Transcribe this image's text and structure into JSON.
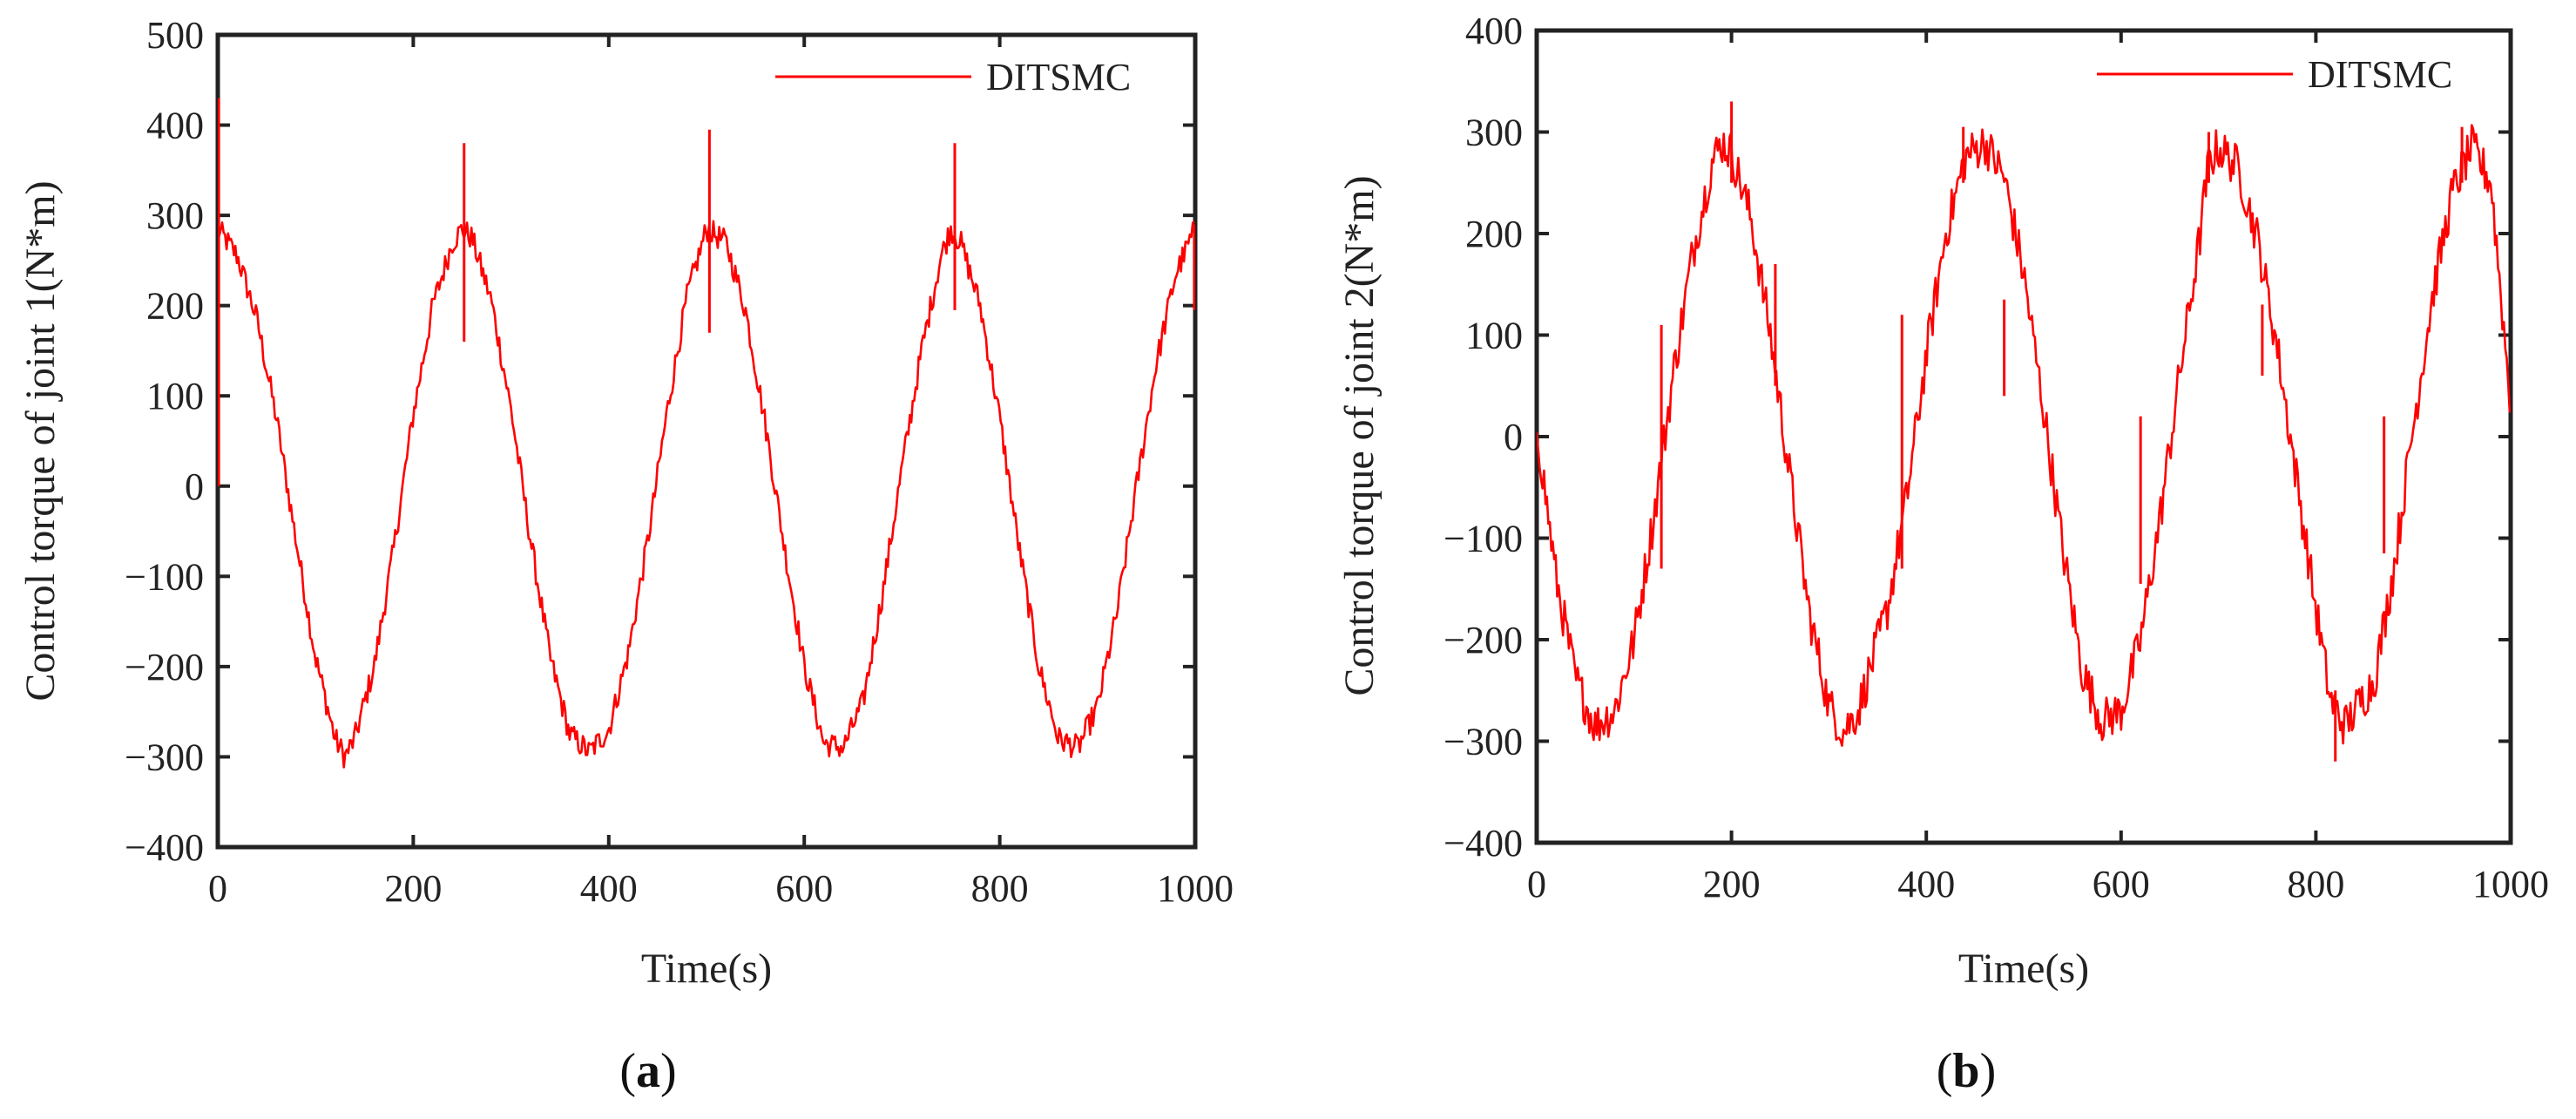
{
  "figure": {
    "panels": [
      {
        "panel_label_open": "(",
        "panel_label_letter": "a",
        "panel_label_close": ")"
      },
      {
        "panel_label_open": "(",
        "panel_label_letter": "b",
        "panel_label_close": ")"
      }
    ]
  },
  "colors": {
    "series": "#ff0000",
    "axis": "#222222"
  },
  "chart_data": [
    {
      "type": "line",
      "title": "",
      "xlabel": "Time(s)",
      "ylabel": "Control torque of joint 1(N*m)",
      "xlim": [
        0,
        1000
      ],
      "ylim": [
        -400,
        500
      ],
      "xticks": [
        0,
        200,
        400,
        600,
        800,
        1000
      ],
      "xtick_labels": [
        "0",
        "200",
        "400",
        "600",
        "800",
        "1000"
      ],
      "yticks": [
        -400,
        -300,
        -200,
        -100,
        0,
        100,
        200,
        300,
        400,
        500
      ],
      "ytick_labels": [
        "−400",
        "−300",
        "−200",
        "−100",
        "0",
        "100",
        "200",
        "300",
        "400",
        "500"
      ],
      "legend": [
        "DITSMC"
      ],
      "legend_position": "top-right",
      "series": [
        {
          "name": "DITSMC",
          "x": [
            0,
            20,
            40,
            60,
            80,
            100,
            120,
            130,
            140,
            160,
            180,
            200,
            220,
            240,
            250,
            260,
            280,
            300,
            320,
            340,
            360,
            380,
            400,
            420,
            440,
            460,
            480,
            500,
            520,
            540,
            560,
            580,
            600,
            620,
            640,
            660,
            680,
            700,
            720,
            740,
            750,
            760,
            780,
            800,
            820,
            840,
            860,
            880,
            900,
            920,
            940,
            960,
            980,
            1000
          ],
          "values": [
            285,
            255,
            185,
            75,
            -60,
            -190,
            -280,
            -300,
            -280,
            -200,
            -70,
            80,
            200,
            270,
            285,
            275,
            205,
            85,
            -60,
            -190,
            -275,
            -295,
            -270,
            -185,
            -60,
            85,
            210,
            285,
            270,
            195,
            70,
            -70,
            -200,
            -285,
            -290,
            -240,
            -120,
            20,
            150,
            255,
            285,
            270,
            200,
            75,
            -70,
            -200,
            -280,
            -290,
            -245,
            -140,
            0,
            135,
            235,
            285
          ],
          "spikes": [
            {
              "x": 1,
              "high": 430,
              "low": 0
            },
            {
              "x": 252,
              "high": 380,
              "low": 160
            },
            {
              "x": 503,
              "high": 395,
              "low": 170
            },
            {
              "x": 754,
              "high": 380,
              "low": 195
            },
            {
              "x": 999,
              "high": 290,
              "low": 195
            }
          ],
          "noise_amplitude": 14
        }
      ]
    },
    {
      "type": "line",
      "title": "",
      "xlabel": "Time(s)",
      "ylabel": "Control torque of joint 2(N*m)",
      "xlim": [
        0,
        1000
      ],
      "ylim": [
        -400,
        400
      ],
      "xticks": [
        0,
        200,
        400,
        600,
        800,
        1000
      ],
      "xtick_labels": [
        "0",
        "200",
        "400",
        "600",
        "800",
        "1000"
      ],
      "yticks": [
        -400,
        -300,
        -200,
        -100,
        0,
        100,
        200,
        300,
        400
      ],
      "ytick_labels": [
        "−400",
        "−300",
        "−200",
        "−100",
        "0",
        "100",
        "200",
        "300",
        "400"
      ],
      "legend": [
        "DITSMC"
      ],
      "legend_position": "top-right",
      "series": [
        {
          "name": "DITSMC",
          "x": [
            0,
            20,
            40,
            60,
            80,
            100,
            120,
            140,
            160,
            180,
            190,
            200,
            220,
            240,
            260,
            280,
            300,
            315,
            330,
            360,
            380,
            400,
            420,
            440,
            460,
            480,
            500,
            520,
            540,
            560,
            580,
            600,
            620,
            640,
            660,
            680,
            690,
            700,
            720,
            740,
            760,
            780,
            800,
            815,
            830,
            860,
            880,
            900,
            920,
            940,
            960,
            980,
            1000
          ],
          "values": [
            10,
            -140,
            -240,
            -285,
            -270,
            -200,
            -80,
            60,
            180,
            270,
            290,
            280,
            215,
            100,
            -40,
            -175,
            -265,
            -290,
            -270,
            -170,
            -60,
            80,
            200,
            275,
            290,
            255,
            160,
            30,
            -110,
            -230,
            -280,
            -270,
            -200,
            -80,
            60,
            190,
            270,
            285,
            265,
            195,
            90,
            -40,
            -170,
            -260,
            -285,
            -240,
            -130,
            10,
            140,
            240,
            285,
            250,
            30
          ],
          "spikes": [
            {
              "x": 128,
              "high": 110,
              "low": -130
            },
            {
              "x": 200,
              "high": 330,
              "low": 250
            },
            {
              "x": 245,
              "high": 170,
              "low": 50
            },
            {
              "x": 375,
              "high": 120,
              "low": -130
            },
            {
              "x": 438,
              "high": 305,
              "low": 250
            },
            {
              "x": 480,
              "high": 135,
              "low": 40
            },
            {
              "x": 620,
              "high": 20,
              "low": -145
            },
            {
              "x": 690,
              "high": 300,
              "low": 250
            },
            {
              "x": 745,
              "high": 130,
              "low": 60
            },
            {
              "x": 820,
              "high": -250,
              "low": -320
            },
            {
              "x": 870,
              "high": 20,
              "low": -115
            },
            {
              "x": 950,
              "high": 305,
              "low": 250
            }
          ],
          "noise_amplitude": 22
        }
      ]
    }
  ]
}
